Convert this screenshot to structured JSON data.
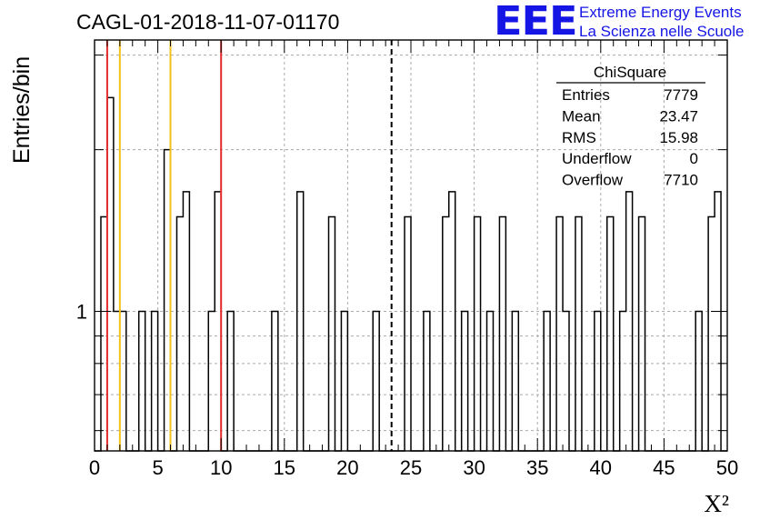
{
  "title": "CAGL-01-2018-11-07-01170",
  "logo": {
    "mark": "EEE",
    "line1": "Extreme Energy Events",
    "line2": "La Scienza nelle Scuole",
    "color": "#1515e6"
  },
  "stats": {
    "name": "ChiSquare",
    "rows": [
      {
        "label": "Entries",
        "value": "7779"
      },
      {
        "label": "Mean",
        "value": "23.47"
      },
      {
        "label": "RMS",
        "value": "15.98"
      },
      {
        "label": "Underflow",
        "value": "0"
      },
      {
        "label": "Overflow",
        "value": "7710"
      }
    ]
  },
  "chart_data": {
    "type": "histogram",
    "title": "CAGL-01-2018-11-07-01170",
    "xlabel": "X²",
    "ylabel": "Entries/bin",
    "xlim": [
      0,
      50
    ],
    "ylim": [
      0.55,
      3.2
    ],
    "yscale": "log",
    "bin_width": 0.5,
    "x_ticks": [
      0,
      5,
      10,
      15,
      20,
      25,
      30,
      35,
      40,
      45,
      50
    ],
    "y_tick_labels": [
      {
        "value": 1,
        "label": "1"
      }
    ],
    "grid": true,
    "bin_starts": [
      0.5,
      1.0,
      1.5,
      2.0,
      3.5,
      4.5,
      5.5,
      6.5,
      7.0,
      9.0,
      9.5,
      10.5,
      14.0,
      16.0,
      18.5,
      19.5,
      22.0,
      24.5,
      26.0,
      27.5,
      28.0,
      29.0,
      30.0,
      31.0,
      32.0,
      33.0,
      35.5,
      36.5,
      37.0,
      38.0,
      39.5,
      40.5,
      41.5,
      42.0,
      43.0,
      47.5,
      48.5,
      49.0
    ],
    "counts": [
      1.5,
      2.5,
      1.0,
      1.0,
      1.0,
      1.0,
      2.0,
      1.5,
      1.67,
      1.0,
      1.67,
      1.0,
      1.0,
      1.67,
      1.5,
      1.0,
      1.0,
      1.5,
      1.0,
      1.5,
      1.67,
      1.0,
      1.5,
      1.0,
      1.5,
      1.0,
      1.0,
      1.5,
      1.0,
      1.5,
      1.0,
      1.5,
      1.0,
      1.67,
      1.5,
      1.0,
      1.5,
      1.67
    ],
    "markers": [
      {
        "x": 1,
        "color": "#e32b2b",
        "style": "solid"
      },
      {
        "x": 2,
        "color": "#f2c21b",
        "style": "solid"
      },
      {
        "x": 6,
        "color": "#f2c21b",
        "style": "solid"
      },
      {
        "x": 10,
        "color": "#e32b2b",
        "style": "solid"
      },
      {
        "x": 23.47,
        "color": "#000000",
        "style": "dashed"
      }
    ],
    "legend_position": "top-right"
  }
}
